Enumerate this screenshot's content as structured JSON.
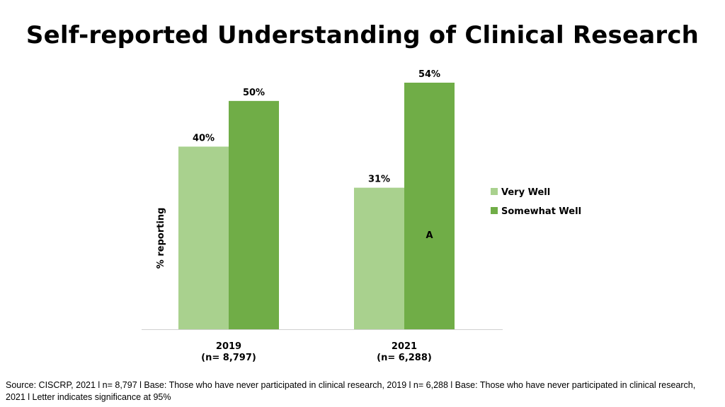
{
  "colors": {
    "very_well": "#a9d18e",
    "somewhat_well": "#70ad47",
    "axis": "#d0d0d0"
  },
  "chart_data": {
    "type": "bar",
    "title": "Self-reported Understanding of Clinical Research",
    "ylabel": "% reporting",
    "xlabel": "",
    "categories": [
      "2019",
      "2021"
    ],
    "category_subtitles": [
      "(n= 8,797)",
      "(n= 6,288)"
    ],
    "series": [
      {
        "name": "Very Well",
        "values": [
          40,
          31
        ],
        "labels": [
          "40%",
          "31%"
        ],
        "color": "#a9d18e"
      },
      {
        "name": "Somewhat Well",
        "values": [
          50,
          54
        ],
        "labels": [
          "50%",
          "54%"
        ],
        "color": "#70ad47"
      }
    ],
    "annotations": [
      {
        "series": "Somewhat Well",
        "category": "2021",
        "text": "A"
      }
    ],
    "ylim": [
      0,
      54
    ],
    "grid": false,
    "legend": "right"
  },
  "source_note": "Source: CISCRP, 2021 l n= 8,797 l Base:  Those who have never participated in clinical research, 2019 l n= 6,288 l Base: Those who have never participated in clinical research, 2021 l Letter indicates significance at 95%"
}
